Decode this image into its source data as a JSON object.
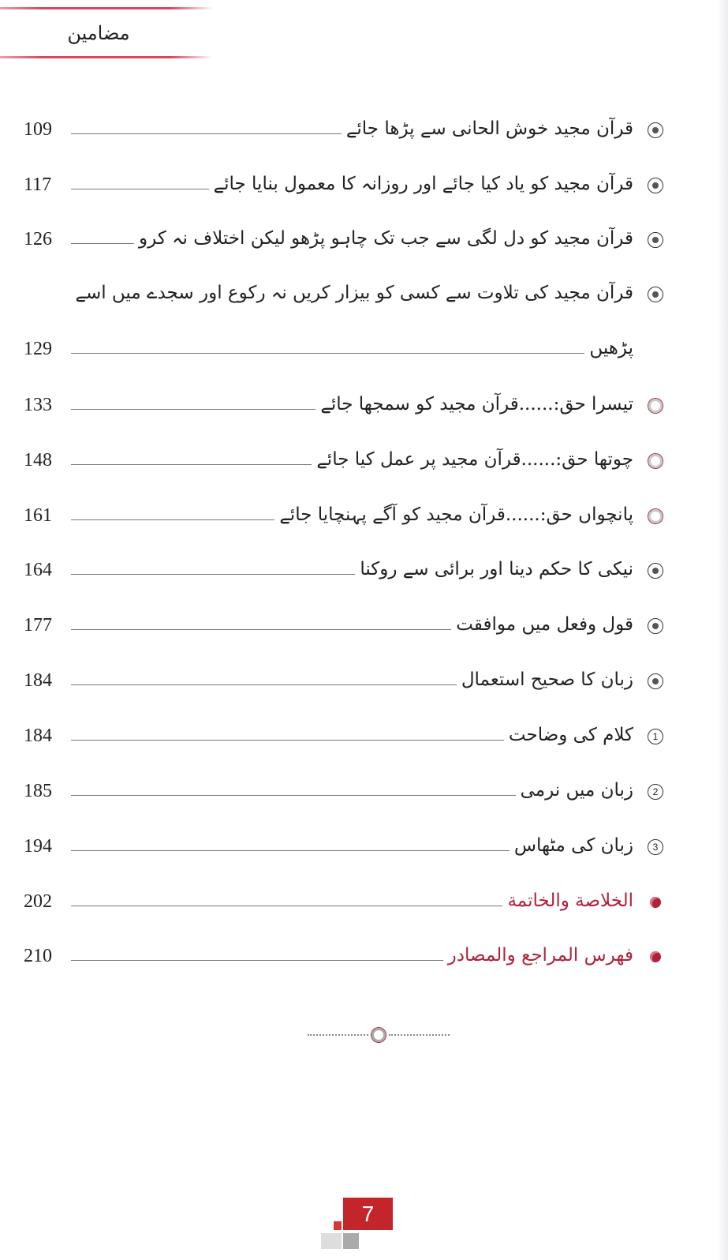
{
  "header": {
    "title": "مضامین"
  },
  "entries": [
    {
      "bullet": "target-icon",
      "text": "قرآن مجید خوش الحانی سے پڑھا جائے",
      "page": "109"
    },
    {
      "bullet": "target-icon",
      "text": "قرآن مجید کو یاد کیا جائے اور روزانہ کا معمول بنایا جائے",
      "page": "117"
    },
    {
      "bullet": "target-icon",
      "text": "قرآن مجید کو دل لگی سے جب تک چاہو پڑھو لیکن اختلاف نہ کرو",
      "page": "126"
    },
    {
      "bullet": "target-icon",
      "text": "قرآن مجید کی تلاوت سے کسی کو بیزار کریں نہ رکوع اور سجدے میں اسے",
      "page": ""
    },
    {
      "bullet": "",
      "text": "پڑھیں",
      "page": "129"
    },
    {
      "bullet": "ring-icon",
      "text": "تیسرا حق:......قرآن مجید کو سمجھا جائے",
      "page": "133"
    },
    {
      "bullet": "ring-icon",
      "text": "چوتھا حق:......قرآن مجید پر عمل کیا جائے",
      "page": "148"
    },
    {
      "bullet": "ring-icon",
      "text": "پانچواں حق:......قرآن مجید کو آگے پہنچایا جائے",
      "page": "161"
    },
    {
      "bullet": "target-icon",
      "text": "نیکی کا حکم دینا اور برائی سے روکنا",
      "page": "164"
    },
    {
      "bullet": "target-icon",
      "text": "قول وفعل میں موافقت",
      "page": "177"
    },
    {
      "bullet": "target-icon",
      "text": "زبان کا صحیح استعمال",
      "page": "184"
    },
    {
      "bullet": "circled-number-icon",
      "marker": "1",
      "text": "کلام کی وضاحت",
      "page": "184"
    },
    {
      "bullet": "circled-number-icon",
      "marker": "2",
      "text": "زبان میں نرمی",
      "page": "185"
    },
    {
      "bullet": "circled-number-icon",
      "marker": "3",
      "text": "زبان کی مٹھاس",
      "page": "194"
    },
    {
      "bullet": "red-dot-icon",
      "text": "الخلاصة والخاتمة",
      "page": "202",
      "color": "#b0223a"
    },
    {
      "bullet": "red-dot-icon",
      "text": "فهرس المراجع والمصادر",
      "page": "210",
      "color": "#b0223a"
    }
  ],
  "footer": {
    "page_number": "7",
    "accent": "#c4252b"
  }
}
